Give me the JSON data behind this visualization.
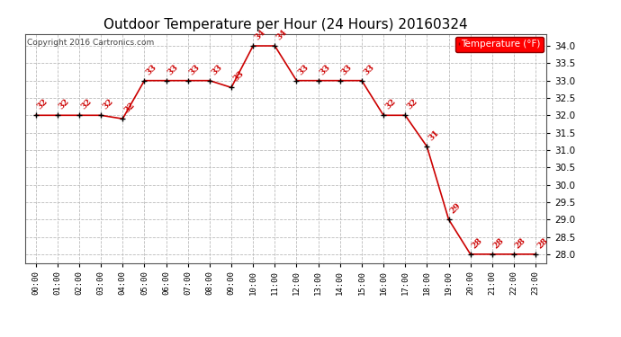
{
  "title": "Outdoor Temperature per Hour (24 Hours) 20160324",
  "copyright_text": "Copyright 2016 Cartronics.com",
  "legend_label": "Temperature (°F)",
  "hours": [
    "00:00",
    "01:00",
    "02:00",
    "03:00",
    "04:00",
    "05:00",
    "06:00",
    "07:00",
    "08:00",
    "09:00",
    "10:00",
    "11:00",
    "12:00",
    "13:00",
    "14:00",
    "15:00",
    "16:00",
    "17:00",
    "18:00",
    "19:00",
    "20:00",
    "21:00",
    "22:00",
    "23:00"
  ],
  "temperatures": [
    32,
    32,
    32,
    32,
    31.9,
    33,
    33,
    33,
    33,
    32.8,
    34,
    34,
    33,
    33,
    33,
    33,
    32,
    32,
    31.1,
    29,
    28,
    28,
    28,
    28
  ],
  "temp_labels": [
    "32",
    "32",
    "32",
    "32",
    "32",
    "33",
    "33",
    "33",
    "33",
    "33",
    "34",
    "34",
    "33",
    "33",
    "33",
    "33",
    "32",
    "32",
    "31",
    "29",
    "28",
    "28",
    "28",
    "28"
  ],
  "line_color": "#cc0000",
  "marker_color": "#000000",
  "background_color": "#ffffff",
  "grid_color": "#bbbbbb",
  "title_fontsize": 11,
  "ylim_min": 27.75,
  "ylim_max": 34.35,
  "ytick_min": 28.0,
  "ytick_max": 34.0,
  "ytick_step": 0.5
}
